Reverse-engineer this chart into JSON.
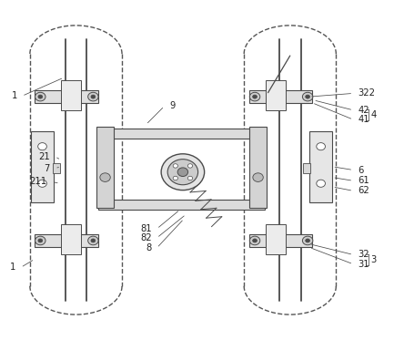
{
  "bg_color": "#ffffff",
  "line_color": "#4a4a4a",
  "dashed_color": "#555555",
  "label_color": "#222222",
  "figsize": [
    4.44,
    3.73
  ],
  "dpi": 100
}
